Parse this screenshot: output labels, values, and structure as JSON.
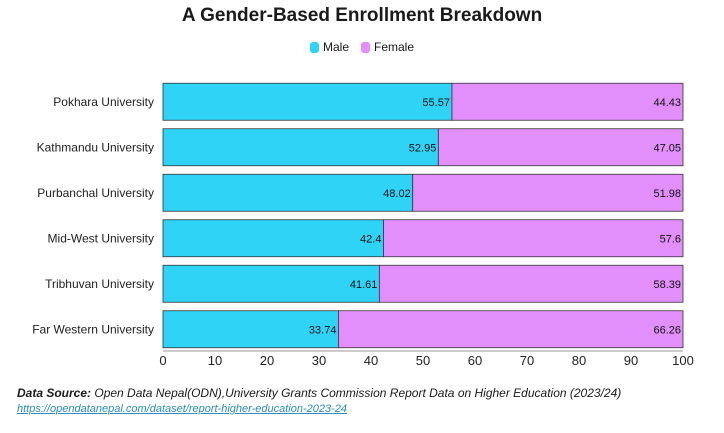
{
  "chart_data": {
    "type": "bar",
    "orientation": "horizontal",
    "stacked": true,
    "title": "A Gender-Based Enrollment Breakdown",
    "categories": [
      "Pokhara University",
      "Kathmandu University",
      "Purbanchal University",
      "Mid-West University",
      "Tribhuvan University",
      "Far Western University"
    ],
    "series": [
      {
        "name": "Male",
        "color": "#2ed3f5",
        "values": [
          55.57,
          52.95,
          48.02,
          42.4,
          41.61,
          33.74
        ],
        "labels": [
          "55.57",
          "52.95",
          "48.02",
          "42.4",
          "41.61",
          "33.74"
        ]
      },
      {
        "name": "Female",
        "color": "#e38ffb",
        "values": [
          44.43,
          47.05,
          51.98,
          57.6,
          58.39,
          66.26
        ],
        "labels": [
          "44.43",
          "47.05",
          "51.98",
          "57.6",
          "58.39",
          "66.26"
        ]
      }
    ],
    "xlim": [
      0,
      100
    ],
    "xticks": [
      "0",
      "10",
      "20",
      "30",
      "40",
      "50",
      "60",
      "70",
      "80",
      "90",
      "100"
    ],
    "grid": false,
    "legend": "top-center"
  },
  "source": {
    "label": "Data Source:",
    "text": " Open Data Nepal(ODN),University Grants Commission Report Data on Higher Education (2023/24)",
    "url": "https://opendatanepal.com/dataset/report-higher-education-2023-24"
  }
}
